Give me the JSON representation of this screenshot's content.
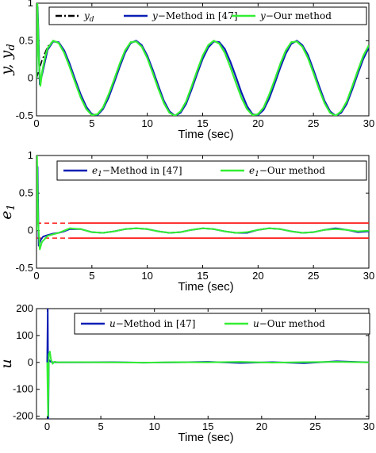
{
  "chart_data": [
    {
      "type": "line",
      "ylabel": "y, y",
      "ylabel_sub": "d",
      "xlabel": "Time (sec)",
      "xlim": [
        0,
        30
      ],
      "ylim": [
        -0.5,
        1
      ],
      "xticks": [
        "0",
        "5",
        "10",
        "15",
        "20",
        "25",
        "30"
      ],
      "yticks": [
        "-0.5",
        "0",
        "0.5",
        "1"
      ],
      "legend": [
        {
          "sym": "y",
          "sub": "d",
          "text": "",
          "color": "#000000",
          "dash": "8,3,2,3"
        },
        {
          "sym": "y",
          "sub": "",
          "text": "−Method in [47]",
          "color": "#0a1fb4",
          "dash": ""
        },
        {
          "sym": "y",
          "sub": "",
          "text": "−Our method",
          "color": "#33ee33",
          "dash": ""
        }
      ],
      "series": [
        {
          "name": "y_d",
          "color": "#000000",
          "dash": "8,3,2,3",
          "width": 1.6,
          "x": [
            0,
            0.5,
            1,
            1.5,
            2,
            2.5,
            3,
            3.5,
            4,
            4.5,
            5,
            5.5,
            6,
            6.5,
            7,
            7.5,
            8,
            8.5,
            9,
            9.5,
            10,
            10.5,
            11,
            11.5,
            12,
            12.5,
            13,
            13.5,
            14,
            14.5,
            15,
            15.5,
            16,
            16.5,
            17,
            17.5,
            18,
            18.5,
            19,
            19.5,
            20,
            20.5,
            21,
            21.5,
            22,
            22.5,
            23,
            23.5,
            24,
            24.5,
            25,
            25.5,
            26,
            26.5,
            27,
            27.5,
            28,
            28.5,
            29,
            29.5,
            30
          ],
          "y": [
            0,
            0.24,
            0.42,
            0.5,
            0.47,
            0.34,
            0.15,
            -0.06,
            -0.26,
            -0.41,
            -0.49,
            -0.48,
            -0.39,
            -0.22,
            -0.02,
            0.19,
            0.37,
            0.48,
            0.49,
            0.42,
            0.27,
            0.07,
            -0.14,
            -0.33,
            -0.46,
            -0.5,
            -0.44,
            -0.31,
            -0.11,
            0.1,
            0.3,
            0.44,
            0.5,
            0.46,
            0.34,
            0.15,
            -0.06,
            -0.26,
            -0.41,
            -0.49,
            -0.48,
            -0.39,
            -0.22,
            -0.02,
            0.19,
            0.37,
            0.48,
            0.49,
            0.42,
            0.27,
            0.07,
            -0.14,
            -0.33,
            -0.46,
            -0.5,
            -0.44,
            -0.31,
            -0.11,
            0.1,
            0.3,
            0.44
          ]
        },
        {
          "name": "y Method in [47]",
          "color": "#0a1fb4",
          "dash": "",
          "width": 2.2,
          "x": [
            0,
            0.1,
            0.3,
            0.5,
            0.8,
            1,
            1.5,
            2,
            2.5,
            3,
            3.5,
            4,
            4.5,
            5,
            5.5,
            6,
            6.5,
            7,
            7.5,
            8,
            8.5,
            9,
            9.5,
            10,
            10.5,
            11,
            11.5,
            12,
            12.5,
            13,
            13.5,
            14,
            14.5,
            15,
            15.5,
            16,
            16.5,
            17,
            17.5,
            18,
            18.5,
            19,
            19.5,
            20,
            20.5,
            21,
            21.5,
            22,
            22.5,
            23,
            23.5,
            24,
            24.5,
            25,
            25.5,
            26,
            26.5,
            27,
            27.5,
            28,
            28.5,
            29,
            29.5,
            30
          ],
          "y": [
            0,
            0.95,
            -0.08,
            0.05,
            0.25,
            0.38,
            0.49,
            0.48,
            0.37,
            0.19,
            -0.02,
            -0.22,
            -0.38,
            -0.48,
            -0.49,
            -0.41,
            -0.26,
            -0.06,
            0.15,
            0.34,
            0.47,
            0.5,
            0.44,
            0.3,
            0.11,
            -0.1,
            -0.3,
            -0.44,
            -0.5,
            -0.46,
            -0.34,
            -0.15,
            0.06,
            0.26,
            0.41,
            0.49,
            0.48,
            0.39,
            0.22,
            0.02,
            -0.19,
            -0.37,
            -0.48,
            -0.49,
            -0.42,
            -0.27,
            -0.07,
            0.14,
            0.33,
            0.46,
            0.5,
            0.44,
            0.31,
            0.11,
            -0.1,
            -0.3,
            -0.44,
            -0.5,
            -0.46,
            -0.34,
            -0.15,
            0.06,
            0.26,
            0.41
          ]
        },
        {
          "name": "y Our method",
          "color": "#33ee33",
          "dash": "",
          "width": 2.2,
          "x": [
            0,
            0.08,
            0.2,
            0.35,
            0.5,
            0.8,
            1,
            1.5,
            2,
            2.5,
            3,
            3.5,
            4,
            4.5,
            5,
            5.5,
            6,
            6.5,
            7,
            7.5,
            8,
            8.5,
            9,
            9.5,
            10,
            10.5,
            11,
            11.5,
            12,
            12.5,
            13,
            13.5,
            14,
            14.5,
            15,
            15.5,
            16,
            16.5,
            17,
            17.5,
            18,
            18.5,
            19,
            19.5,
            20,
            20.5,
            21,
            21.5,
            22,
            22.5,
            23,
            23.5,
            24,
            24.5,
            25,
            25.5,
            26,
            26.5,
            27,
            27.5,
            28,
            28.5,
            29,
            29.5,
            30
          ],
          "y": [
            0,
            1.0,
            0.3,
            -0.1,
            0.08,
            0.3,
            0.4,
            0.5,
            0.47,
            0.34,
            0.15,
            -0.06,
            -0.26,
            -0.41,
            -0.49,
            -0.48,
            -0.39,
            -0.22,
            -0.02,
            0.19,
            0.37,
            0.48,
            0.49,
            0.42,
            0.27,
            0.07,
            -0.14,
            -0.33,
            -0.46,
            -0.5,
            -0.44,
            -0.31,
            -0.11,
            0.1,
            0.3,
            0.44,
            0.5,
            0.46,
            0.34,
            0.15,
            -0.06,
            -0.26,
            -0.41,
            -0.49,
            -0.48,
            -0.39,
            -0.22,
            -0.02,
            0.19,
            0.37,
            0.48,
            0.49,
            0.42,
            0.27,
            0.07,
            -0.14,
            -0.33,
            -0.46,
            -0.5,
            -0.44,
            -0.31,
            -0.11,
            0.1,
            0.3,
            0.44
          ]
        }
      ]
    },
    {
      "type": "line",
      "ylabel": "e",
      "ylabel_sub": "1",
      "xlabel": "Time (sec)",
      "xlim": [
        0,
        30
      ],
      "ylim": [
        -0.5,
        1
      ],
      "xticks": [
        "0",
        "5",
        "10",
        "15",
        "20",
        "25",
        "30"
      ],
      "yticks": [
        "-0.5",
        "0",
        "0.5",
        "1"
      ],
      "legend": [
        {
          "sym": "e",
          "sub": "1",
          "text": "−Method in [47]",
          "color": "#0a1fb4",
          "dash": ""
        },
        {
          "sym": "e",
          "sub": "1",
          "text": "−Our method",
          "color": "#33ee33",
          "dash": ""
        }
      ],
      "series": [
        {
          "name": "bound upper dashed",
          "color": "#ff1a1a",
          "dash": "6,4",
          "width": 1.5,
          "x": [
            0,
            3
          ],
          "y": [
            0.1,
            0.1
          ]
        },
        {
          "name": "bound lower dashed",
          "color": "#ff1a1a",
          "dash": "6,4",
          "width": 1.5,
          "x": [
            0,
            3
          ],
          "y": [
            -0.1,
            -0.1
          ]
        },
        {
          "name": "bound upper",
          "color": "#ff1a1a",
          "dash": "",
          "width": 1.8,
          "x": [
            3,
            30
          ],
          "y": [
            0.1,
            0.1
          ]
        },
        {
          "name": "bound lower",
          "color": "#ff1a1a",
          "dash": "",
          "width": 1.8,
          "x": [
            3,
            30
          ],
          "y": [
            -0.1,
            -0.1
          ]
        },
        {
          "name": "e1 Method in [47]",
          "color": "#0a1fb4",
          "dash": "",
          "width": 2.0,
          "x": [
            0,
            0.1,
            0.2,
            0.4,
            0.6,
            1,
            1.5,
            2,
            2.5,
            3,
            4,
            5,
            6,
            7,
            8,
            9,
            10,
            11,
            12,
            13,
            14,
            15,
            16,
            17,
            18,
            19,
            20,
            21,
            22,
            23,
            24,
            25,
            26,
            27,
            28,
            29,
            30
          ],
          "y": [
            0,
            0.85,
            -0.2,
            -0.12,
            -0.08,
            -0.06,
            -0.04,
            -0.03,
            -0.01,
            0.02,
            0.02,
            -0.02,
            -0.03,
            -0.01,
            0.02,
            0.03,
            0.02,
            -0.01,
            -0.03,
            -0.02,
            0.01,
            0.03,
            0.02,
            -0.01,
            -0.03,
            -0.03,
            0.01,
            0.03,
            0.02,
            -0.01,
            -0.03,
            -0.02,
            0.01,
            0.03,
            0.01,
            -0.02,
            -0.01
          ]
        },
        {
          "name": "e1 Our method",
          "color": "#33ee33",
          "dash": "",
          "width": 2.0,
          "x": [
            0,
            0.05,
            0.15,
            0.3,
            0.5,
            1,
            1.5,
            2,
            2.5,
            3,
            4,
            5,
            6,
            7,
            8,
            9,
            10,
            11,
            12,
            13,
            14,
            15,
            16,
            17,
            18,
            19,
            20,
            21,
            22,
            23,
            24,
            25,
            26,
            27,
            28,
            29,
            30
          ],
          "y": [
            0,
            1.0,
            0.1,
            -0.25,
            -0.15,
            -0.07,
            -0.05,
            -0.03,
            0.0,
            0.03,
            0.02,
            -0.02,
            -0.03,
            -0.01,
            0.02,
            0.03,
            0.02,
            -0.01,
            -0.03,
            -0.02,
            0.01,
            0.03,
            0.02,
            -0.01,
            -0.03,
            -0.02,
            0.01,
            0.03,
            0.02,
            -0.01,
            -0.03,
            -0.02,
            0.01,
            0.02,
            0.01,
            -0.01,
            0.0
          ]
        }
      ]
    },
    {
      "type": "line",
      "ylabel": "u",
      "ylabel_sub": "",
      "xlabel": "Time (sec)",
      "xlim": [
        -1,
        30
      ],
      "ylim": [
        -210,
        200
      ],
      "xticks": [
        "0",
        "5",
        "10",
        "15",
        "20",
        "25",
        "30"
      ],
      "xtick_values": [
        0,
        5,
        10,
        15,
        20,
        25,
        30
      ],
      "yticks": [
        "-200",
        "-100",
        "0",
        "100",
        "200"
      ],
      "ytick_values": [
        -200,
        -100,
        0,
        100,
        200
      ],
      "legend": [
        {
          "sym": "u",
          "sub": "",
          "text": "−Method in [47]",
          "color": "#0a1fb4",
          "dash": ""
        },
        {
          "sym": "u",
          "sub": "",
          "text": "−Our method",
          "color": "#33ee33",
          "dash": ""
        }
      ],
      "series": [
        {
          "name": "u Method in [47]",
          "color": "#0a1fb4",
          "dash": "",
          "width": 2.0,
          "x": [
            0,
            0.05,
            0.1,
            0.15,
            0.3,
            0.5,
            1,
            3,
            6,
            9,
            12,
            15,
            18,
            21,
            24,
            27,
            30
          ],
          "y": [
            0,
            200,
            -210,
            10,
            3,
            1,
            0,
            0,
            1,
            -1,
            0,
            2,
            -2,
            1,
            -3,
            4,
            0
          ]
        },
        {
          "name": "u Our method",
          "color": "#33ee33",
          "dash": "",
          "width": 2.0,
          "x": [
            0,
            0.08,
            0.15,
            0.25,
            0.35,
            0.5,
            0.7,
            1,
            3,
            6,
            9,
            12,
            15,
            18,
            21,
            24,
            27,
            30
          ],
          "y": [
            0,
            -200,
            30,
            40,
            12,
            -5,
            3,
            0,
            1,
            0,
            -1,
            1,
            0,
            2,
            -1,
            1,
            2,
            0
          ]
        }
      ]
    }
  ]
}
